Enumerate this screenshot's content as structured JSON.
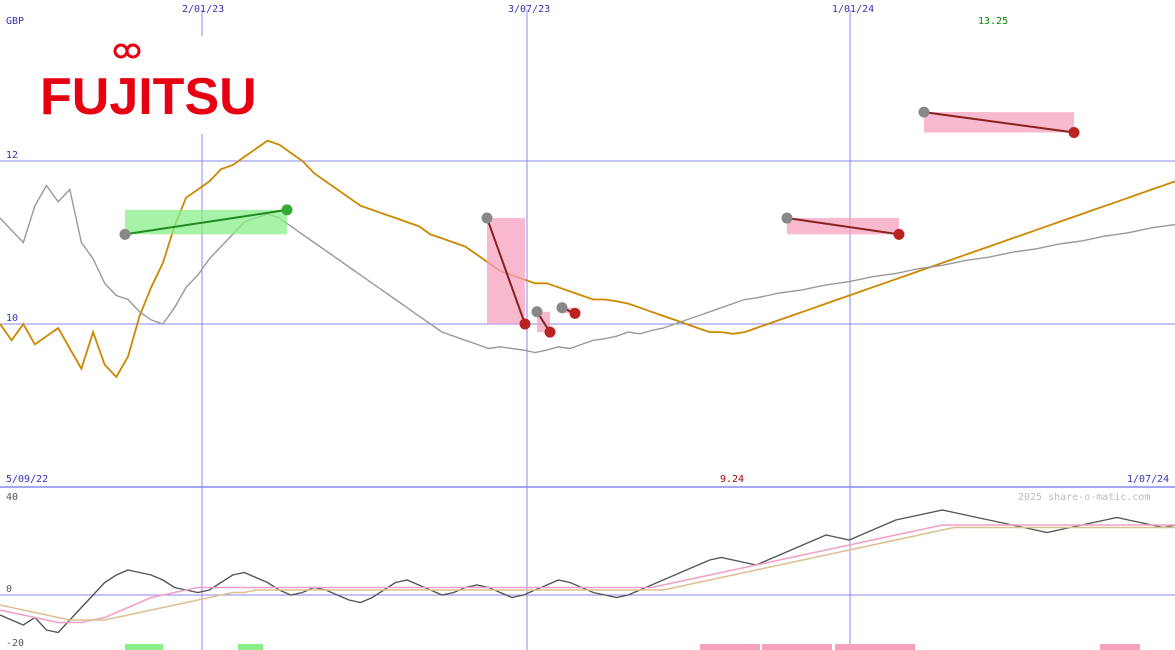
{
  "company": {
    "name": "FUJITSU",
    "logo_color": "#e60012"
  },
  "header": {
    "currency": "GBP",
    "top_dates": [
      "2/01/23",
      "3/07/23",
      "1/01/24"
    ],
    "high_value": "13.25",
    "low_value": "9.24",
    "start_date": "5/09/22",
    "end_date": "1/07/24",
    "watermark": "2025 share-o-matic.com"
  },
  "colors": {
    "price": "#cc8800",
    "benchmark": "#999999",
    "gridline": "#8888ee",
    "label_blue": "#3333bb",
    "label_green": "#008800",
    "label_red": "#aa0000",
    "gain_fill": "#88ee88",
    "loss_fill": "#f5a0bc",
    "gain_line": "#228822",
    "loss_line": "#882222",
    "marker_gray": "#888888",
    "marker_red": "#bb2222",
    "marker_green": "#33aa33",
    "osc_dark": "#555555",
    "osc_pink": "#f0a0c8",
    "osc_tan": "#ddc090",
    "bar_green": "#88ee88",
    "bar_pink": "#f5a0bc"
  },
  "chart_data": [
    {
      "type": "line",
      "title": "FUJITSU",
      "ylabel": "GBP",
      "y_ticks": [
        10,
        12
      ],
      "ylim": [
        8,
        14
      ],
      "x_range": [
        "5/09/22",
        "1/07/24"
      ],
      "x_ticks": [
        "2/01/23",
        "3/07/23",
        "1/01/24"
      ],
      "grid": true,
      "series": [
        {
          "role": "price",
          "values": [
            10.0,
            9.8,
            10.0,
            9.75,
            9.85,
            9.95,
            9.7,
            9.45,
            9.9,
            9.5,
            9.35,
            9.6,
            10.1,
            10.45,
            10.75,
            11.2,
            11.55,
            11.65,
            11.75,
            11.9,
            11.95,
            12.05,
            12.15,
            12.25,
            12.2,
            12.1,
            12.0,
            11.85,
            11.75,
            11.65,
            11.55,
            11.45,
            11.4,
            11.35,
            11.3,
            11.25,
            11.2,
            11.1,
            11.05,
            11.0,
            10.95,
            10.85,
            10.75,
            10.65,
            10.6,
            10.55,
            10.5,
            10.5,
            10.45,
            10.4,
            10.35,
            10.3,
            10.3,
            10.28,
            10.25,
            10.2,
            10.15,
            10.1,
            10.05,
            10.0,
            9.95,
            9.9,
            9.9,
            9.88,
            9.9,
            9.95,
            10.0,
            10.05,
            10.1,
            10.15,
            10.2,
            10.25,
            10.3,
            10.35,
            10.4,
            10.45,
            10.5,
            10.55,
            10.6,
            10.65,
            10.7,
            10.75,
            10.8,
            10.85,
            10.9,
            10.95,
            11.0,
            11.05,
            11.1,
            11.15,
            11.2,
            11.25,
            11.3,
            11.35,
            11.4,
            11.45,
            11.5,
            11.55,
            11.6,
            11.65,
            11.7,
            11.75
          ]
        },
        {
          "role": "benchmark",
          "values": [
            11.3,
            11.15,
            11.0,
            11.45,
            11.7,
            11.5,
            11.65,
            11.0,
            10.8,
            10.5,
            10.35,
            10.3,
            10.15,
            10.05,
            10.0,
            10.2,
            10.45,
            10.6,
            10.8,
            10.95,
            11.1,
            11.25,
            11.3,
            11.35,
            11.3,
            11.2,
            11.1,
            11.0,
            10.9,
            10.8,
            10.7,
            10.6,
            10.5,
            10.4,
            10.3,
            10.2,
            10.1,
            10.0,
            9.9,
            9.85,
            9.8,
            9.75,
            9.7,
            9.72,
            9.7,
            9.68,
            9.65,
            9.68,
            9.72,
            9.7,
            9.75,
            9.8,
            9.82,
            9.85,
            9.9,
            9.88,
            9.92,
            9.95,
            10.0,
            10.05,
            10.1,
            10.15,
            10.2,
            10.25,
            10.3,
            10.32,
            10.35,
            10.38,
            10.4,
            10.42,
            10.45,
            10.48,
            10.5,
            10.52,
            10.55,
            10.58,
            10.6,
            10.62,
            10.65,
            10.68,
            10.7,
            10.72,
            10.75,
            10.78,
            10.8,
            10.82,
            10.85,
            10.88,
            10.9,
            10.92,
            10.95,
            10.98,
            11.0,
            11.02,
            11.05,
            11.08,
            11.1,
            11.12,
            11.15,
            11.18,
            11.2,
            11.22
          ]
        }
      ],
      "annotations": {
        "high": "13.25",
        "low": "9.24",
        "trades": [
          {
            "outcome": "gain",
            "from": 11.1,
            "to": 11.4
          },
          {
            "outcome": "loss",
            "from": 11.3,
            "to": 10.0
          },
          {
            "outcome": "loss",
            "from": 10.15,
            "to": 9.9
          },
          {
            "outcome": "loss",
            "from": 10.2,
            "to": 10.13
          },
          {
            "outcome": "loss",
            "from": 11.3,
            "to": 11.1
          },
          {
            "outcome": "loss",
            "from": 12.6,
            "to": 12.35
          }
        ]
      }
    },
    {
      "type": "line",
      "title": "",
      "y_ticks": [
        40,
        0,
        -20
      ],
      "ylim": [
        -20,
        40
      ],
      "grid": true,
      "series": [
        {
          "role": "oscillator",
          "values": [
            -8,
            -10,
            -12,
            -9,
            -14,
            -15,
            -10,
            -5,
            0,
            5,
            8,
            10,
            9,
            8,
            6,
            3,
            2,
            1,
            2,
            5,
            8,
            9,
            7,
            5,
            2,
            0,
            1,
            3,
            2,
            0,
            -2,
            -3,
            -1,
            2,
            5,
            6,
            4,
            2,
            0,
            1,
            3,
            4,
            3,
            1,
            -1,
            0,
            2,
            4,
            6,
            5,
            3,
            1,
            0,
            -1,
            0,
            2,
            4,
            6,
            8,
            10,
            12,
            14,
            15,
            14,
            13,
            12,
            14,
            16,
            18,
            20,
            22,
            24,
            23,
            22,
            24,
            26,
            28,
            30,
            31,
            32,
            33,
            34,
            33,
            32,
            31,
            30,
            29,
            28,
            27,
            26,
            25,
            26,
            27,
            28,
            29,
            30,
            31,
            30,
            29,
            28,
            27,
            28
          ]
        },
        {
          "role": "fast average",
          "values": [
            -6,
            -7,
            -8,
            -9,
            -10,
            -11,
            -11,
            -11,
            -10,
            -9,
            -7,
            -5,
            -3,
            -1,
            0,
            1,
            2,
            3,
            3,
            3,
            3,
            3,
            3,
            3,
            3,
            3,
            3,
            3,
            3,
            3,
            3,
            3,
            3,
            3,
            3,
            3,
            3,
            3,
            3,
            3,
            3,
            3,
            3,
            3,
            3,
            3,
            3,
            3,
            3,
            3,
            3,
            3,
            3,
            3,
            3,
            3,
            3,
            4,
            5,
            6,
            7,
            8,
            9,
            10,
            11,
            12,
            13,
            14,
            15,
            16,
            17,
            18,
            19,
            20,
            21,
            22,
            23,
            24,
            25,
            26,
            27,
            28,
            28,
            28,
            28,
            28,
            28,
            28,
            28,
            28,
            28,
            28,
            28,
            28,
            28,
            28,
            28,
            28,
            28,
            28,
            28,
            28
          ]
        },
        {
          "role": "slow average",
          "values": [
            -4,
            -5,
            -6,
            -7,
            -8,
            -9,
            -10,
            -10,
            -10,
            -10,
            -9,
            -8,
            -7,
            -6,
            -5,
            -4,
            -3,
            -2,
            -1,
            0,
            1,
            1,
            2,
            2,
            2,
            2,
            2,
            2,
            2,
            2,
            2,
            2,
            2,
            2,
            2,
            2,
            2,
            2,
            2,
            2,
            2,
            2,
            2,
            2,
            2,
            2,
            2,
            2,
            2,
            2,
            2,
            2,
            2,
            2,
            2,
            2,
            2,
            2,
            3,
            4,
            5,
            6,
            7,
            8,
            9,
            10,
            11,
            12,
            13,
            14,
            15,
            16,
            17,
            18,
            19,
            20,
            21,
            22,
            23,
            24,
            25,
            26,
            27,
            27,
            27,
            27,
            27,
            27,
            27,
            27,
            27,
            27,
            27,
            27,
            27,
            27,
            27,
            27,
            27,
            27,
            27,
            27
          ]
        }
      ]
    }
  ]
}
